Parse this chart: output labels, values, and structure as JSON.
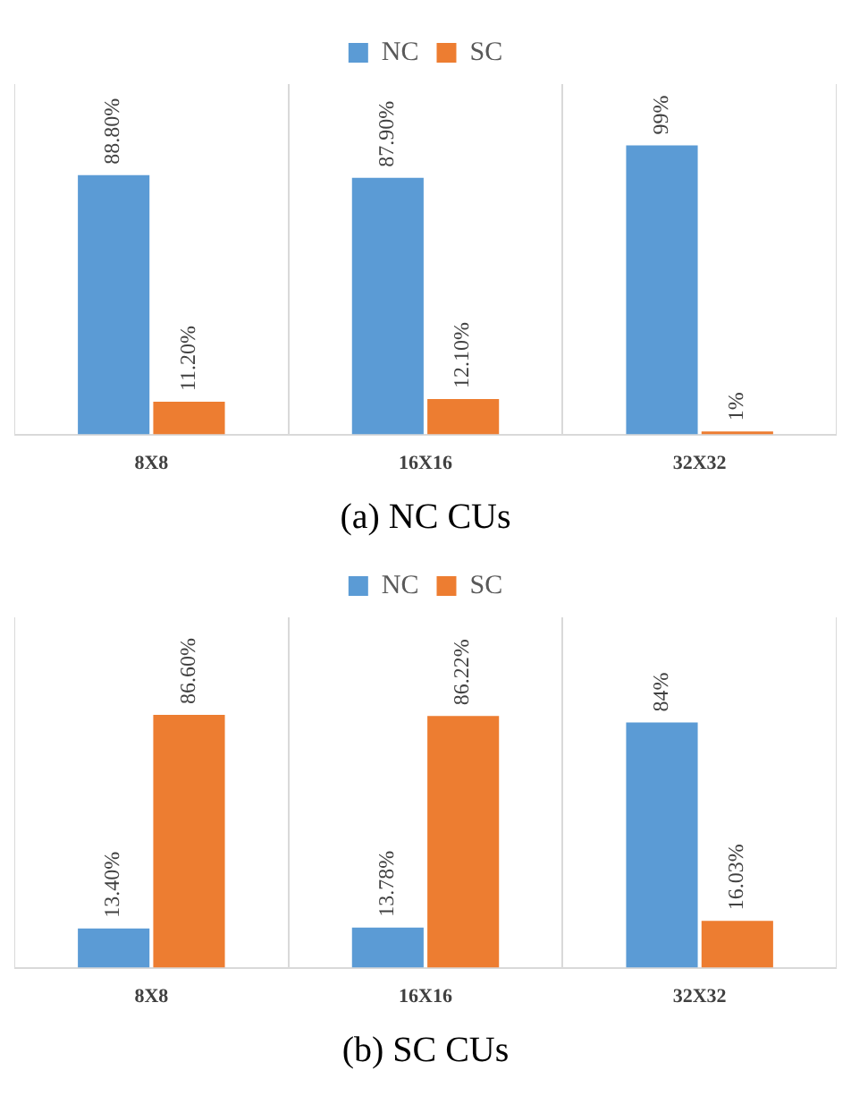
{
  "chart_data": [
    {
      "type": "bar",
      "categories": [
        "8X8",
        "16X16",
        "32X32"
      ],
      "annotations": [
        "(a) NC CUs"
      ],
      "legend": "top",
      "grid": "x",
      "series": [
        {
          "name": "NC",
          "color": "#5b9bd5",
          "values": [
            88.8,
            87.9,
            99
          ],
          "value_labels": [
            "88.80%",
            "87.90%",
            "99%"
          ]
        },
        {
          "name": "SC",
          "color": "#ed7d31",
          "values": [
            11.2,
            12.1,
            1
          ],
          "value_labels": [
            "11.20%",
            "12.10%",
            "1%"
          ]
        }
      ]
    },
    {
      "type": "bar",
      "categories": [
        "8X8",
        "16X16",
        "32X32"
      ],
      "annotations": [
        "(b) SC CUs"
      ],
      "legend": "top",
      "grid": "x",
      "series": [
        {
          "name": "NC",
          "color": "#5b9bd5",
          "values": [
            13.4,
            13.78,
            84
          ],
          "value_labels": [
            "13.40%",
            "13.78%",
            "84%"
          ]
        },
        {
          "name": "SC",
          "color": "#ed7d31",
          "values": [
            86.6,
            86.22,
            16.03
          ],
          "value_labels": [
            "86.60%",
            "86.22%",
            "16.03%"
          ]
        }
      ]
    }
  ]
}
